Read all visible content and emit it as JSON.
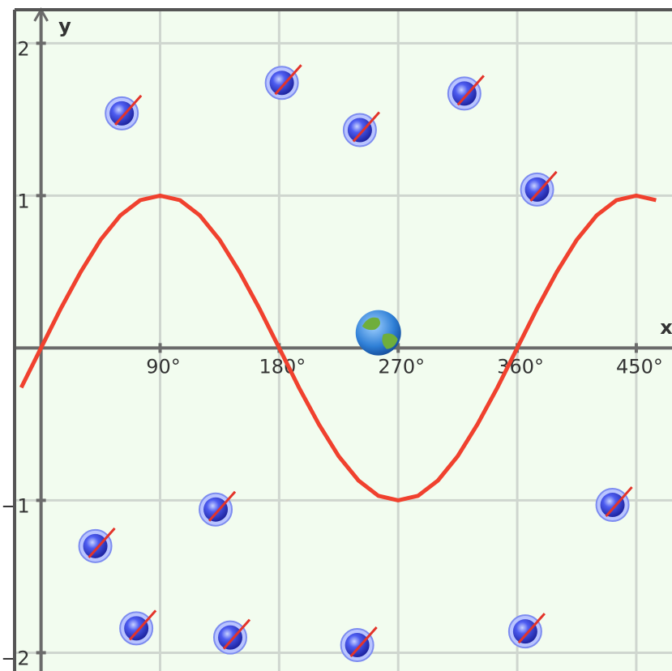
{
  "chart_data": {
    "type": "line",
    "xlabel": "x",
    "ylabel": "y",
    "xlim": [
      -20,
      477
    ],
    "ylim": [
      -2.12,
      2.22
    ],
    "xticks": [
      {
        "value": 90,
        "label": "90°"
      },
      {
        "value": 180,
        "label": "180°"
      },
      {
        "value": 270,
        "label": "270°"
      },
      {
        "value": 360,
        "label": "360°"
      },
      {
        "value": 450,
        "label": "450°"
      }
    ],
    "yticks": [
      {
        "value": -2,
        "label": "−2"
      },
      {
        "value": -1,
        "label": "−1"
      },
      1,
      2
    ],
    "grid": true,
    "color": "#f0412e",
    "x": [
      -15,
      0,
      15,
      30,
      45,
      60,
      75,
      90,
      105,
      120,
      135,
      150,
      165,
      180,
      195,
      210,
      225,
      240,
      255,
      270,
      285,
      300,
      315,
      330,
      345,
      360,
      375,
      390,
      405,
      420,
      435,
      450,
      465
    ],
    "values": [
      -0.26,
      0,
      0.26,
      0.5,
      0.71,
      0.87,
      0.97,
      1,
      0.97,
      0.87,
      0.71,
      0.5,
      0.26,
      0,
      -0.26,
      -0.5,
      -0.71,
      -0.87,
      -0.97,
      -1,
      -0.97,
      -0.87,
      -0.71,
      -0.5,
      -0.26,
      0,
      0.26,
      0.5,
      0.71,
      0.87,
      0.97,
      1,
      0.97
    ],
    "targets": {
      "x": [
        61,
        182,
        241,
        320,
        375,
        41,
        132,
        432,
        72,
        143,
        239,
        366
      ],
      "y": [
        1.54,
        1.74,
        1.43,
        1.67,
        1.04,
        -1.3,
        -1.06,
        -1.03,
        -1.84,
        -1.9,
        -1.95,
        -1.86
      ]
    },
    "earth": {
      "x": 255,
      "y": 0.1
    }
  }
}
